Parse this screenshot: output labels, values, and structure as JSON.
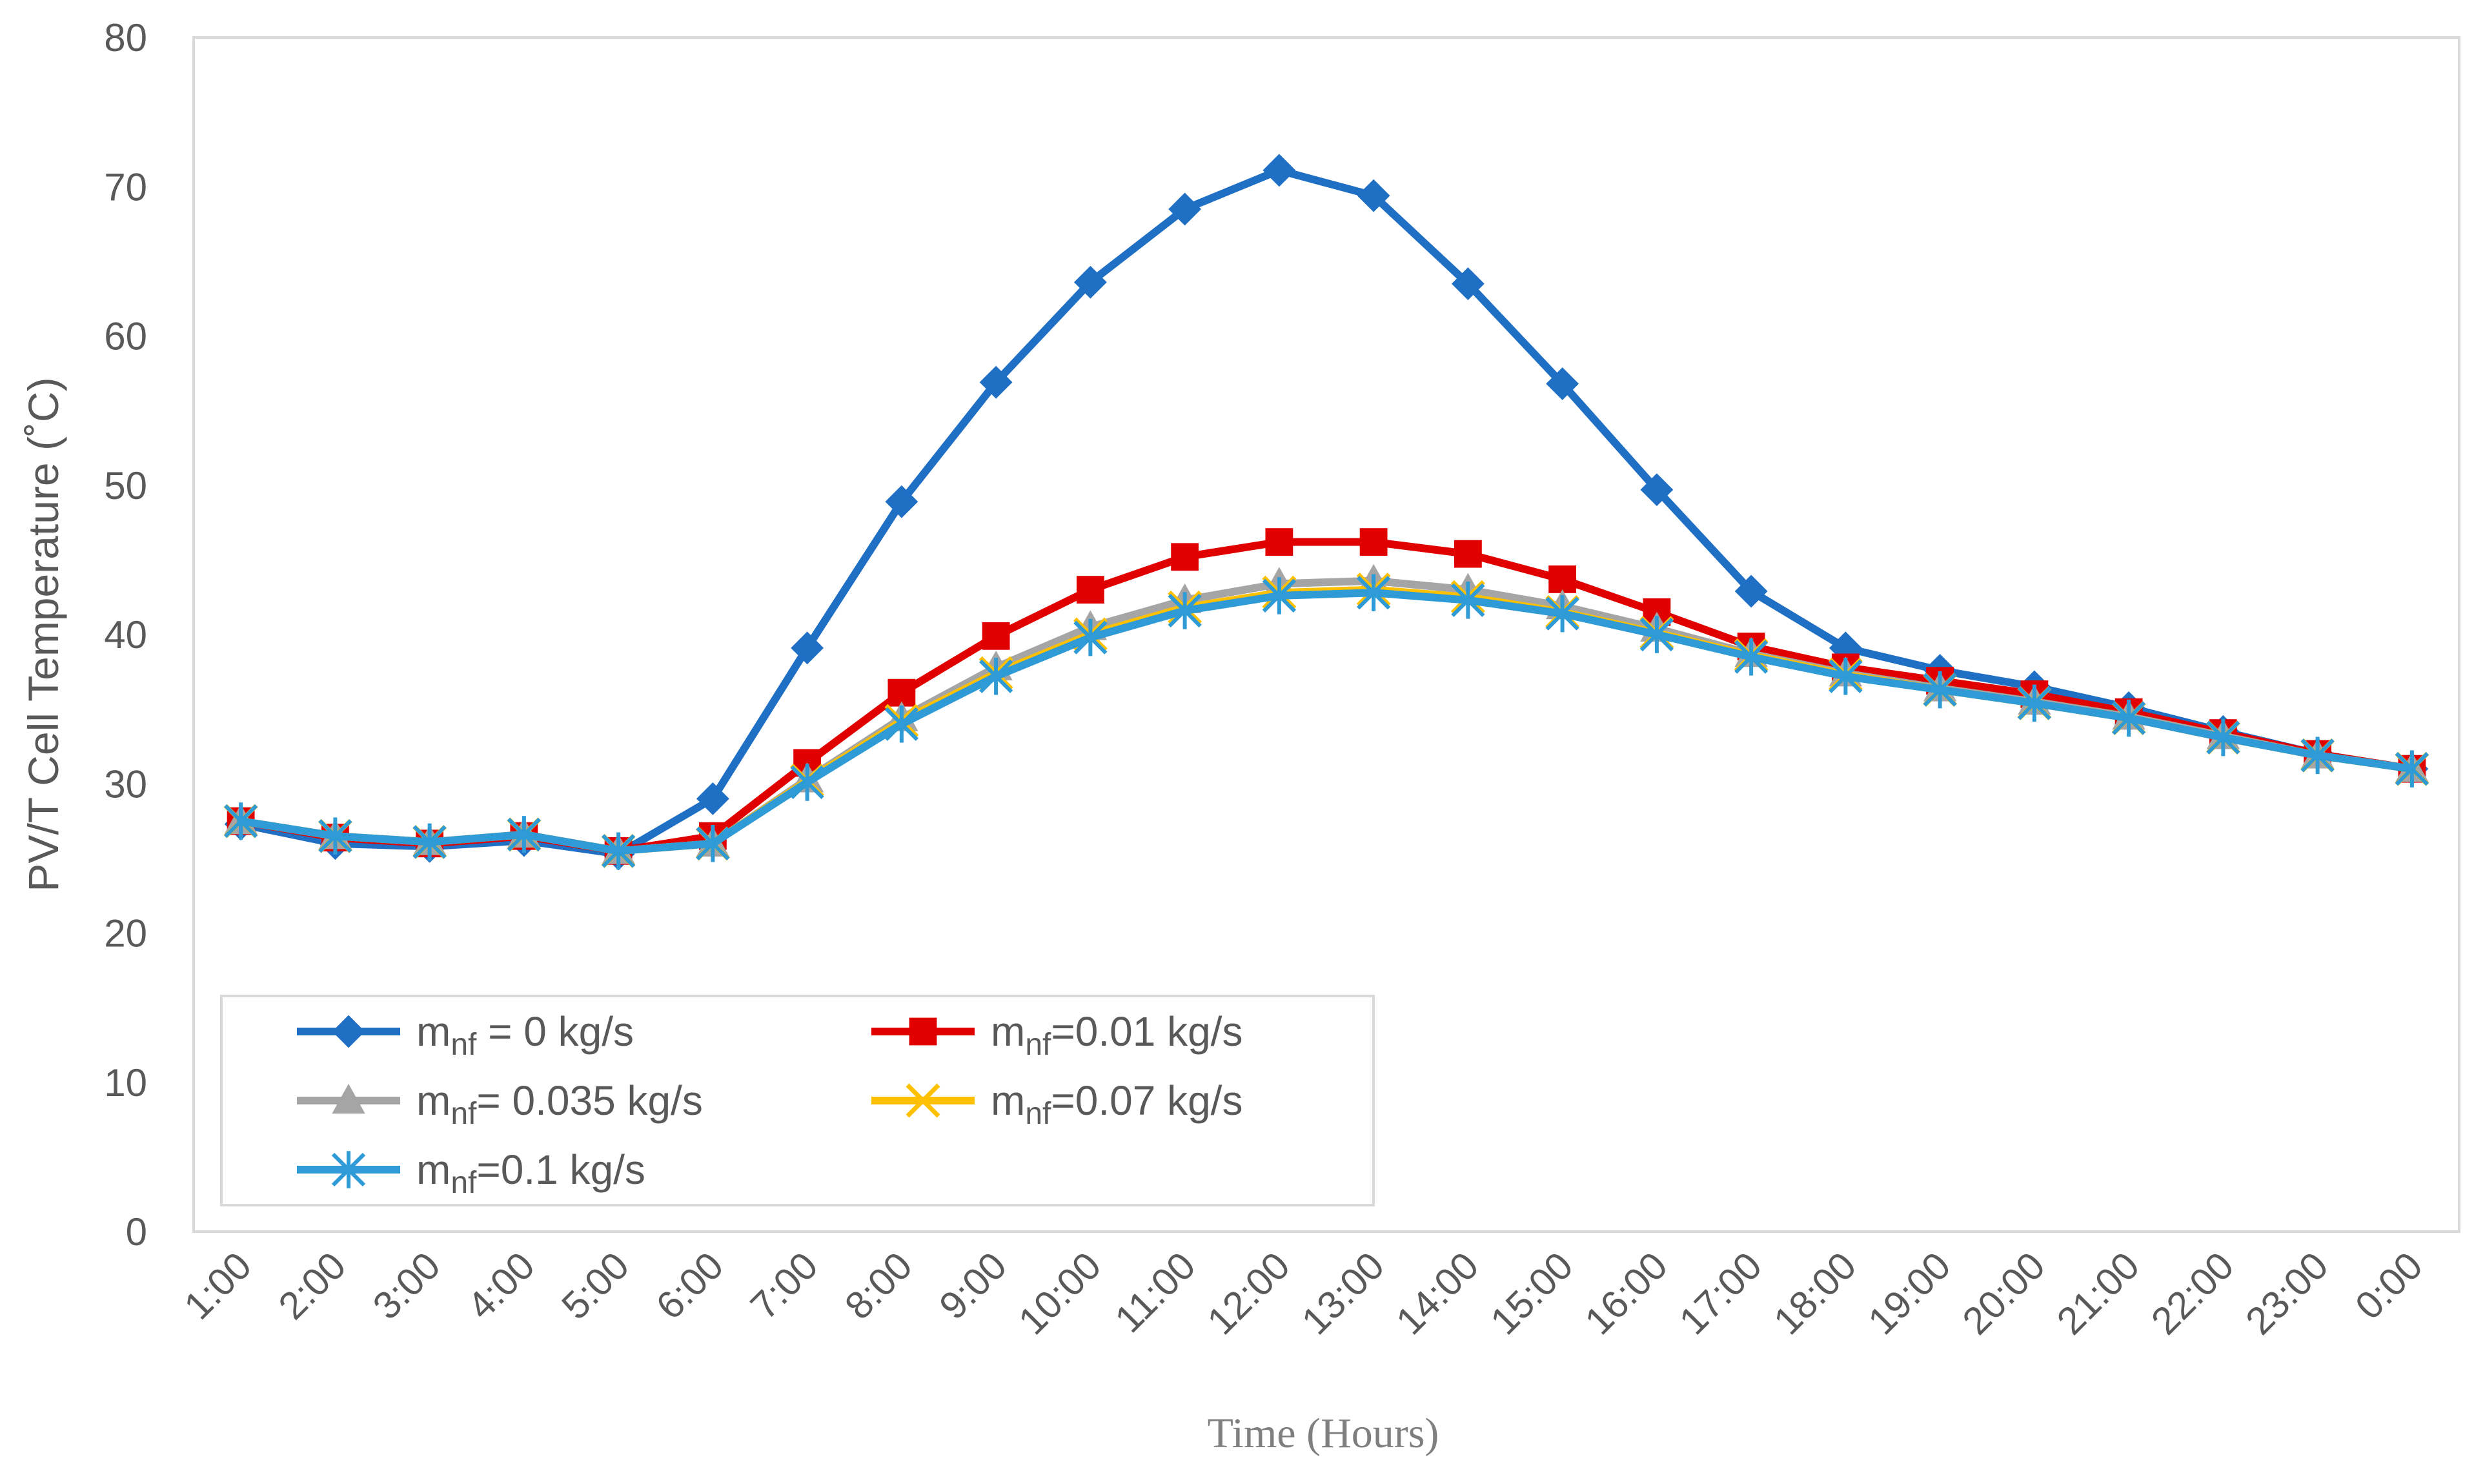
{
  "chart_data": {
    "type": "line",
    "title": "",
    "xlabel": "Time (Hours)",
    "ylabel": "PV/T Cell Temperature (˚C)",
    "ylim": [
      0,
      80
    ],
    "yticks": [
      0,
      10,
      20,
      30,
      40,
      50,
      60,
      70,
      80
    ],
    "grid": false,
    "legend_position": "bottom-left",
    "categories": [
      "1:00",
      "2:00",
      "3:00",
      "4:00",
      "5:00",
      "6:00",
      "7:00",
      "8:00",
      "9:00",
      "10:00",
      "11:00",
      "12:00",
      "13:00",
      "14:00",
      "15:00",
      "16:00",
      "17:00",
      "18:00",
      "19:00",
      "20:00",
      "21:00",
      "22:00",
      "23:00",
      "0:00"
    ],
    "series": [
      {
        "name": "mnf = 0 kg/s",
        "legend_main": "m",
        "legend_sub": "nf",
        "legend_rest": " = 0 kg/s",
        "color": "#1f6fc5",
        "marker": "diamond",
        "values": [
          27.3,
          26.0,
          25.8,
          26.2,
          25.3,
          29.0,
          39.1,
          48.9,
          56.9,
          63.6,
          68.5,
          71.1,
          69.4,
          63.5,
          56.8,
          49.7,
          42.9,
          39.1,
          37.6,
          36.5,
          35.1,
          33.5,
          32.0,
          31.0
        ]
      },
      {
        "name": "mnf=0.01 kg/s",
        "legend_main": "m",
        "legend_sub": "nf",
        "legend_rest": "=0.01 kg/s",
        "color": "#e00000",
        "marker": "square",
        "values": [
          27.5,
          26.4,
          26.0,
          26.5,
          25.5,
          26.5,
          31.4,
          36.1,
          39.9,
          43.0,
          45.2,
          46.2,
          46.2,
          45.4,
          43.7,
          41.5,
          39.2,
          37.8,
          36.9,
          36.0,
          34.8,
          33.4,
          32.0,
          31.0
        ]
      },
      {
        "name": "mnf= 0.035 kg/s",
        "legend_main": "m",
        "legend_sub": "nf",
        "legend_rest": "= 0.035 kg/s",
        "color": "#a5a5a5",
        "marker": "triangle",
        "values": [
          27.5,
          26.5,
          26.1,
          26.6,
          25.5,
          26.0,
          30.3,
          34.4,
          37.8,
          40.5,
          42.3,
          43.4,
          43.6,
          43.0,
          41.9,
          40.4,
          38.7,
          37.4,
          36.4,
          35.5,
          34.5,
          33.2,
          31.9,
          31.0
        ]
      },
      {
        "name": "mnf=0.07 kg/s",
        "legend_main": "m",
        "legend_sub": "nf",
        "legend_rest": "=0.07 kg/s",
        "color": "#ffc000",
        "marker": "x",
        "values": [
          27.5,
          26.5,
          26.1,
          26.6,
          25.5,
          26.0,
          30.2,
          34.2,
          37.4,
          40.0,
          41.8,
          42.8,
          43.0,
          42.5,
          41.5,
          40.1,
          38.6,
          37.3,
          36.3,
          35.4,
          34.4,
          33.1,
          31.9,
          31.0
        ]
      },
      {
        "name": "mnf=0.1 kg/s",
        "legend_main": "m",
        "legend_sub": "nf",
        "legend_rest": "=0.1 kg/s",
        "color": "#2e9bd6",
        "marker": "asterisk",
        "values": [
          27.5,
          26.5,
          26.1,
          26.6,
          25.5,
          26.0,
          30.1,
          34.0,
          37.2,
          39.8,
          41.6,
          42.6,
          42.8,
          42.3,
          41.4,
          40.0,
          38.5,
          37.2,
          36.3,
          35.4,
          34.4,
          33.1,
          31.9,
          31.0
        ]
      }
    ]
  }
}
